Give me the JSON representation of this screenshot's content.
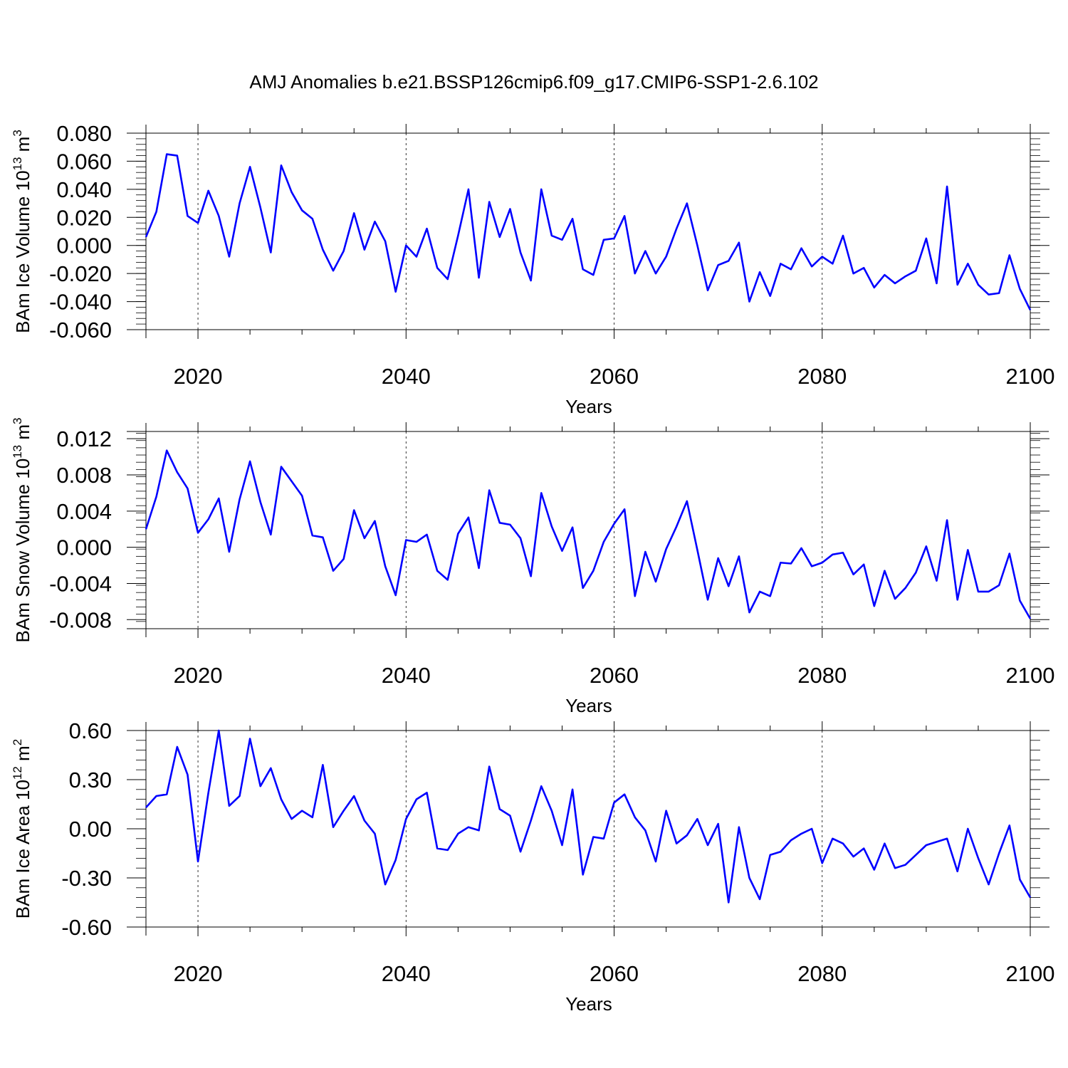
{
  "title": "AMJ Anomalies b.e21.BSSP126cmip6.f09_g17.CMIP6-SSP1-2.6.102",
  "line_color": "#0000ff",
  "chart_data": [
    {
      "type": "line",
      "ylabel": {
        "base": "BAm Ice Volume 10",
        "exp": "13",
        "unit": " m",
        "unit_exp": "3"
      },
      "xlabel": "Years",
      "xlim": [
        2015,
        2100
      ],
      "ylim": [
        -0.06,
        0.08
      ],
      "yticks": [
        -0.06,
        -0.04,
        -0.02,
        0.0,
        0.02,
        0.04,
        0.06,
        0.08
      ],
      "ytick_labels": [
        "-0.060",
        "-0.040",
        "-0.020",
        "0.000",
        "0.020",
        "0.040",
        "0.060",
        "0.080"
      ],
      "xticks": [
        2020,
        2040,
        2060,
        2080,
        2100
      ],
      "xtick_labels": [
        "2020",
        "2040",
        "2060",
        "2080",
        "2100"
      ],
      "grid": "dashed vertical at major x ticks",
      "start_year": 2015,
      "values": [
        0.006,
        0.024,
        0.065,
        0.064,
        0.021,
        0.016,
        0.039,
        0.021,
        -0.008,
        0.03,
        0.056,
        0.027,
        -0.005,
        0.057,
        0.038,
        0.025,
        0.019,
        -0.003,
        -0.018,
        -0.004,
        0.023,
        -0.003,
        0.017,
        0.003,
        -0.033,
        0.0,
        -0.008,
        0.012,
        -0.016,
        -0.024,
        0.007,
        0.04,
        -0.023,
        0.031,
        0.006,
        0.026,
        -0.005,
        -0.025,
        0.04,
        0.007,
        0.004,
        0.019,
        -0.017,
        -0.021,
        0.004,
        0.005,
        0.021,
        -0.02,
        -0.004,
        -0.02,
        -0.008,
        0.012,
        0.03,
        0.0,
        -0.032,
        -0.014,
        -0.011,
        0.002,
        -0.04,
        -0.019,
        -0.036,
        -0.013,
        -0.017,
        -0.002,
        -0.015,
        -0.008,
        -0.013,
        0.007,
        -0.02,
        -0.016,
        -0.03,
        -0.021,
        -0.027,
        -0.022,
        -0.018,
        0.005,
        -0.027,
        0.042,
        -0.028,
        -0.013,
        -0.028,
        -0.035,
        -0.034,
        -0.007,
        -0.031,
        -0.046
      ]
    },
    {
      "type": "line",
      "ylabel": {
        "base": "BAm Snow Volume 10",
        "exp": "13",
        "unit": " m",
        "unit_exp": "3"
      },
      "xlabel": "Years",
      "xlim": [
        2015,
        2100
      ],
      "ylim": [
        -0.009,
        0.0128
      ],
      "yticks": [
        -0.008,
        -0.004,
        0.0,
        0.004,
        0.008,
        0.012
      ],
      "ytick_labels": [
        "-0.008",
        "-0.004",
        "0.000",
        "0.004",
        "0.008",
        "0.012"
      ],
      "xticks": [
        2020,
        2040,
        2060,
        2080,
        2100
      ],
      "xtick_labels": [
        "2020",
        "2040",
        "2060",
        "2080",
        "2100"
      ],
      "grid": "dashed vertical at major x ticks",
      "start_year": 2015,
      "values": [
        0.002,
        0.0056,
        0.0107,
        0.0083,
        0.0065,
        0.0016,
        0.0031,
        0.0054,
        -0.0005,
        0.0053,
        0.0095,
        0.005,
        0.0014,
        0.0089,
        0.0073,
        0.0057,
        0.0013,
        0.0011,
        -0.0026,
        -0.0013,
        0.0041,
        0.001,
        0.0029,
        -0.0021,
        -0.0053,
        0.0008,
        0.0006,
        0.0014,
        -0.0026,
        -0.0036,
        0.0015,
        0.0033,
        -0.0023,
        0.0063,
        0.0027,
        0.0025,
        0.001,
        -0.0032,
        0.006,
        0.0023,
        -0.0004,
        0.0022,
        -0.0045,
        -0.0026,
        0.0006,
        0.0026,
        0.0042,
        -0.0054,
        -0.0005,
        -0.0038,
        -0.0002,
        0.0023,
        0.0051,
        -0.0003,
        -0.0058,
        -0.0012,
        -0.0043,
        -0.001,
        -0.0072,
        -0.0049,
        -0.0054,
        -0.0017,
        -0.0018,
        -0.0001,
        -0.0021,
        -0.0017,
        -0.0008,
        -0.0006,
        -0.003,
        -0.0019,
        -0.0065,
        -0.0026,
        -0.0057,
        -0.0045,
        -0.0028,
        0.0001,
        -0.0037,
        0.003,
        -0.0058,
        -0.0003,
        -0.0049,
        -0.0049,
        -0.0042,
        -0.0007,
        -0.0059,
        -0.0079
      ]
    },
    {
      "type": "line",
      "ylabel": {
        "base": "BAm Ice Area 10",
        "exp": "12",
        "unit": " m",
        "unit_exp": "2"
      },
      "xlabel": "Years",
      "xlim": [
        2015,
        2100
      ],
      "ylim": [
        -0.6,
        0.6
      ],
      "yticks": [
        -0.6,
        -0.3,
        0.0,
        0.3,
        0.6
      ],
      "ytick_labels": [
        "-0.60",
        "-0.30",
        "0.00",
        "0.30",
        "0.60"
      ],
      "xticks": [
        2020,
        2040,
        2060,
        2080,
        2100
      ],
      "xtick_labels": [
        "2020",
        "2040",
        "2060",
        "2080",
        "2100"
      ],
      "grid": "dashed vertical at major x ticks",
      "start_year": 2015,
      "values": [
        0.13,
        0.2,
        0.21,
        0.5,
        0.33,
        -0.2,
        0.22,
        0.6,
        0.14,
        0.2,
        0.55,
        0.26,
        0.37,
        0.18,
        0.06,
        0.11,
        0.07,
        0.39,
        0.01,
        0.11,
        0.2,
        0.05,
        -0.03,
        -0.34,
        -0.19,
        0.06,
        0.18,
        0.22,
        -0.12,
        -0.13,
        -0.03,
        0.01,
        -0.01,
        0.38,
        0.12,
        0.08,
        -0.14,
        0.05,
        0.26,
        0.11,
        -0.1,
        0.24,
        -0.28,
        -0.05,
        -0.06,
        0.16,
        0.21,
        0.07,
        -0.01,
        -0.2,
        0.11,
        -0.09,
        -0.04,
        0.06,
        -0.1,
        0.03,
        -0.45,
        0.01,
        -0.3,
        -0.43,
        -0.16,
        -0.14,
        -0.07,
        -0.03,
        0.0,
        -0.21,
        -0.06,
        -0.09,
        -0.17,
        -0.12,
        -0.25,
        -0.09,
        -0.24,
        -0.22,
        -0.16,
        -0.1,
        -0.08,
        -0.06,
        -0.26,
        0.0,
        -0.18,
        -0.34,
        -0.15,
        0.02,
        -0.31,
        -0.42
      ]
    }
  ]
}
